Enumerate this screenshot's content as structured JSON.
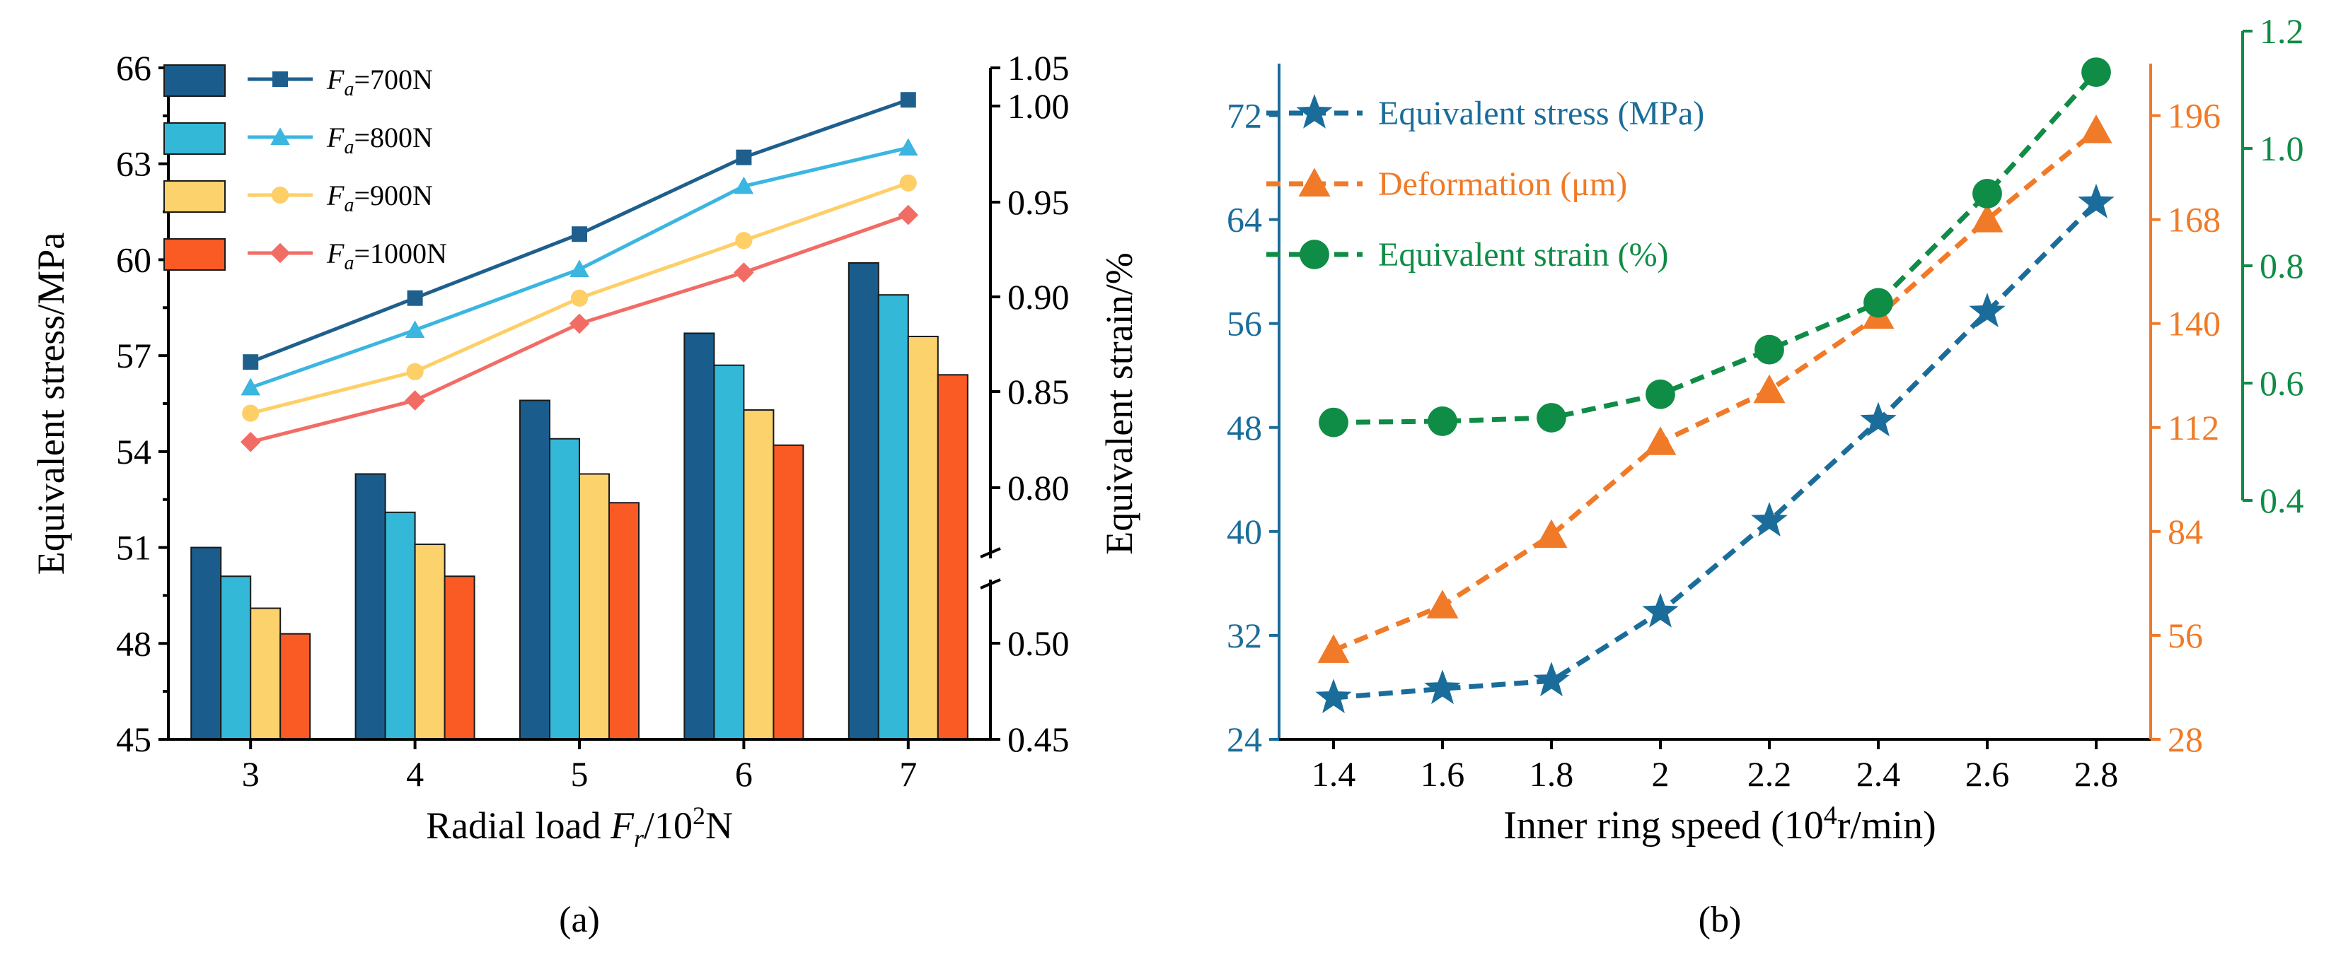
{
  "panel_labels": {
    "a": "(a)",
    "b": "(b)"
  },
  "chart_data": [
    {
      "type": "bar",
      "panel": "(a)",
      "xlabel": {
        "prefix": "Radial load ",
        "italic": "F",
        "sub": "r",
        "suffix1": "/10",
        "sup": "2",
        "suffix2": "N"
      },
      "ylabel_left": "Equivalent stress/MPa",
      "ylabel_right": "Equivalent strain/%",
      "categories": [
        "3",
        "4",
        "5",
        "6",
        "7"
      ],
      "ylim_left": [
        45,
        66
      ],
      "yticks_left": [
        "45",
        "48",
        "51",
        "54",
        "57",
        "60",
        "63",
        "66"
      ],
      "yticks_right": [
        "0.45",
        "0.50",
        "0.80",
        "0.85",
        "0.90",
        "0.95",
        "1.00",
        "1.05"
      ],
      "colors": [
        "#1a5d8c",
        "#34b8d8",
        "#fcd26c",
        "#fa5a24"
      ],
      "line_colors": [
        "#1f5f8d",
        "#3ab6e0",
        "#fecf66",
        "#f26c66"
      ],
      "markers": [
        "square",
        "triangle",
        "circle",
        "diamond"
      ],
      "legend_location": "top-left",
      "series": [
        {
          "name": {
            "italic": "F",
            "sub": "a",
            "rest": "=700N"
          },
          "bar_values": [
            51.0,
            53.3,
            55.6,
            57.7,
            59.9
          ],
          "line_values_left_units": [
            56.8,
            58.8,
            60.8,
            63.2,
            65.0
          ]
        },
        {
          "name": {
            "italic": "F",
            "sub": "a",
            "rest": "=800N"
          },
          "bar_values": [
            50.1,
            52.1,
            54.4,
            56.7,
            58.9
          ],
          "line_values_left_units": [
            56.0,
            57.8,
            59.7,
            62.3,
            63.5
          ]
        },
        {
          "name": {
            "italic": "F",
            "sub": "a",
            "rest": "=900N"
          },
          "bar_values": [
            49.1,
            51.1,
            53.3,
            55.3,
            57.6
          ],
          "line_values_left_units": [
            55.2,
            56.5,
            58.8,
            60.6,
            62.4
          ]
        },
        {
          "name": {
            "italic": "F",
            "sub": "a",
            "rest": "=1000N"
          },
          "bar_values": [
            48.3,
            50.1,
            52.4,
            54.2,
            56.4
          ],
          "line_values_left_units": [
            54.3,
            55.6,
            58.0,
            59.6,
            61.4
          ]
        }
      ]
    },
    {
      "type": "line",
      "panel": "(b)",
      "xlabel": {
        "prefix": "Inner ring speed (10",
        "sup": "4",
        "suffix": "r/min)"
      },
      "x": [
        1.4,
        1.6,
        1.8,
        2.0,
        2.2,
        2.4,
        2.6,
        2.8
      ],
      "xticks": [
        "1.4",
        "1.6",
        "1.8",
        "2",
        "2.2",
        "2.4",
        "2.6",
        "2.8"
      ],
      "xlim": [
        1.3,
        2.9
      ],
      "axes": {
        "left": {
          "ylim": [
            24,
            76
          ],
          "ticks": [
            "24",
            "32",
            "40",
            "48",
            "56",
            "64",
            "72"
          ],
          "color": "#1a6d9a"
        },
        "right": {
          "ylim": [
            28,
            210
          ],
          "ticks": [
            "28",
            "56",
            "84",
            "112",
            "140",
            "168",
            "196"
          ],
          "color": "#f07a28"
        },
        "far_right": {
          "ylim": [
            0.4,
            1.2
          ],
          "ticks": [
            "0.4",
            "0.6",
            "0.8",
            "1.0",
            "1.2"
          ],
          "color": "#0f8c46"
        }
      },
      "legend_location": "top-left",
      "series": [
        {
          "name": "Equivalent stress (MPa)",
          "color": "#1a6d9a",
          "marker": "star",
          "axis": "left",
          "values": [
            27.2,
            27.9,
            28.5,
            33.8,
            40.8,
            48.5,
            56.9,
            65.3
          ]
        },
        {
          "name": "Deformation (μm)",
          "color": "#f07a28",
          "marker": "triangle",
          "axis": "right",
          "values": [
            52,
            64,
            83,
            108,
            122,
            142,
            168,
            192
          ]
        },
        {
          "name": "Equivalent strain (%)",
          "color": "#0f8c46",
          "marker": "circle",
          "axis": "far_right",
          "values": [
            0.533,
            0.535,
            0.541,
            0.581,
            0.657,
            0.737,
            0.923,
            1.13
          ]
        }
      ]
    }
  ]
}
